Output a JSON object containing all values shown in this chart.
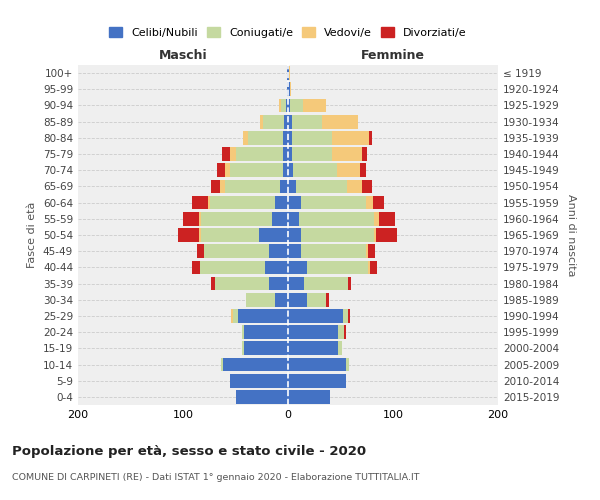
{
  "age_groups": [
    "100+",
    "95-99",
    "90-94",
    "85-89",
    "80-84",
    "75-79",
    "70-74",
    "65-69",
    "60-64",
    "55-59",
    "50-54",
    "45-49",
    "40-44",
    "35-39",
    "30-34",
    "25-29",
    "20-24",
    "15-19",
    "10-14",
    "5-9",
    "0-4"
  ],
  "birth_years": [
    "≤ 1919",
    "1920-1924",
    "1925-1929",
    "1930-1934",
    "1935-1939",
    "1940-1944",
    "1945-1949",
    "1950-1954",
    "1955-1959",
    "1960-1964",
    "1965-1969",
    "1970-1974",
    "1975-1979",
    "1980-1984",
    "1985-1989",
    "1990-1994",
    "1995-1999",
    "2000-2004",
    "2005-2009",
    "2010-2014",
    "2015-2019"
  ],
  "colors": {
    "celibi": "#4472C4",
    "coniugati": "#c5d9a0",
    "vedovi": "#f5c97a",
    "divorziati": "#cc2222"
  },
  "male": {
    "celibi": [
      1,
      1,
      2,
      4,
      5,
      5,
      5,
      8,
      12,
      15,
      28,
      18,
      22,
      18,
      12,
      48,
      42,
      42,
      62,
      55,
      50
    ],
    "coniugati": [
      0,
      0,
      5,
      20,
      33,
      45,
      50,
      52,
      62,
      68,
      55,
      62,
      62,
      52,
      28,
      4,
      2,
      2,
      2,
      0,
      0
    ],
    "vedovi": [
      0,
      0,
      2,
      3,
      5,
      5,
      5,
      5,
      2,
      2,
      2,
      0,
      0,
      0,
      0,
      2,
      0,
      0,
      0,
      0,
      0
    ],
    "divorziati": [
      0,
      0,
      0,
      0,
      0,
      8,
      8,
      8,
      15,
      15,
      20,
      7,
      7,
      3,
      0,
      0,
      0,
      0,
      0,
      0,
      0
    ]
  },
  "female": {
    "celibi": [
      1,
      2,
      2,
      4,
      4,
      4,
      5,
      8,
      12,
      10,
      12,
      12,
      18,
      15,
      18,
      52,
      48,
      48,
      55,
      55,
      40
    ],
    "coniugati": [
      0,
      0,
      12,
      28,
      38,
      38,
      42,
      48,
      62,
      72,
      70,
      62,
      58,
      42,
      18,
      5,
      5,
      3,
      3,
      0,
      0
    ],
    "vedovi": [
      1,
      1,
      22,
      35,
      35,
      28,
      22,
      14,
      7,
      5,
      2,
      2,
      2,
      0,
      0,
      0,
      0,
      0,
      0,
      0,
      0
    ],
    "divorziati": [
      0,
      0,
      0,
      0,
      3,
      5,
      5,
      10,
      10,
      15,
      20,
      7,
      7,
      3,
      3,
      2,
      2,
      0,
      0,
      0,
      0
    ]
  },
  "xlim": 200,
  "title": "Popolazione per età, sesso e stato civile - 2020",
  "subtitle": "COMUNE DI CARPINETI (RE) - Dati ISTAT 1° gennaio 2020 - Elaborazione TUTTITALIA.IT",
  "ylabel_left": "Fasce di età",
  "ylabel_right": "Anni di nascita",
  "xlabel_left": "Maschi",
  "xlabel_right": "Femmine",
  "legend_labels": [
    "Celibi/Nubili",
    "Coniugati/e",
    "Vedovi/e",
    "Divorziati/e"
  ],
  "background_color": "#ffffff",
  "grid_color": "#cccccc"
}
